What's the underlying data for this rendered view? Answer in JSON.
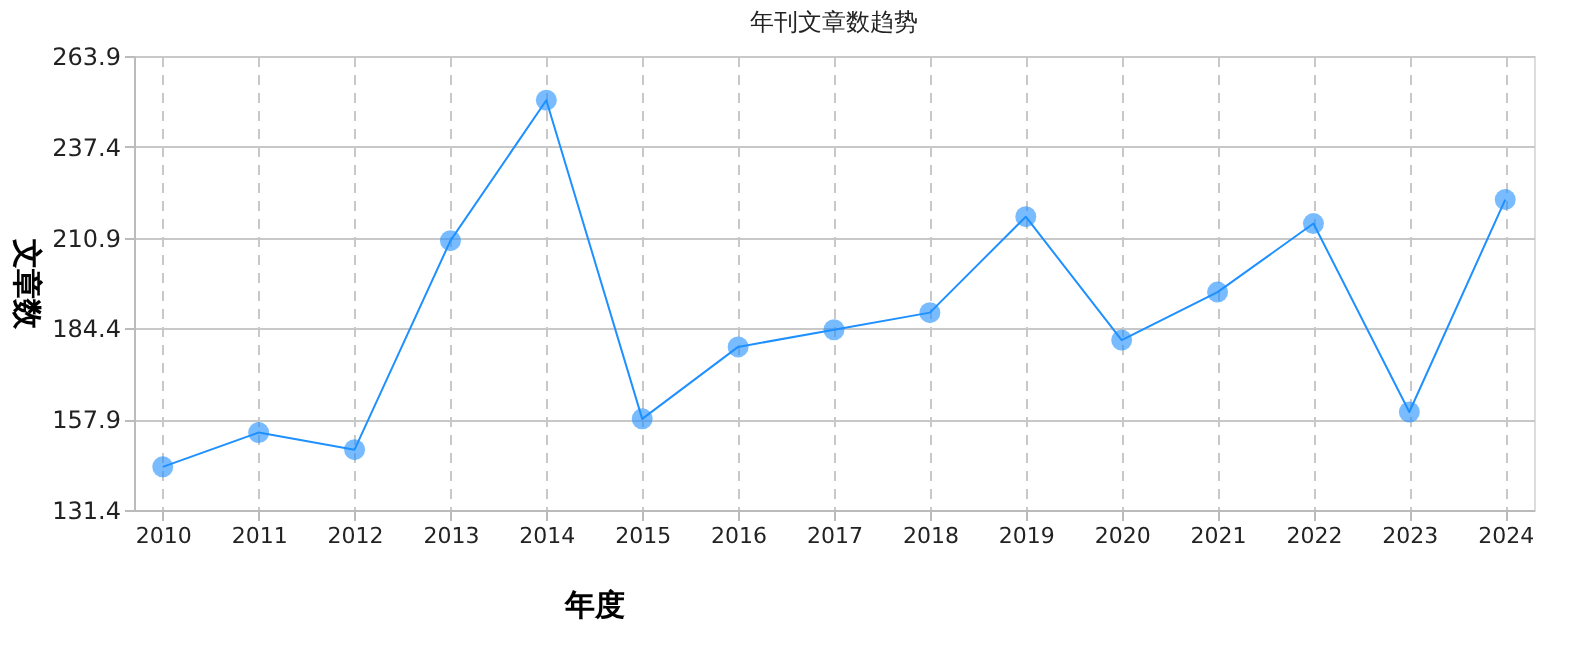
{
  "chart_data": {
    "type": "line",
    "title": "年刊文章数趋势",
    "xlabel": "年度",
    "ylabel": "文章数",
    "categories": [
      "2010",
      "2011",
      "2012",
      "2013",
      "2014",
      "2015",
      "2016",
      "2017",
      "2018",
      "2019",
      "2020",
      "2021",
      "2022",
      "2023",
      "2024"
    ],
    "series": [
      {
        "color": "#1e90ff",
        "values": [
          144,
          154,
          149,
          210,
          251,
          158,
          179,
          184,
          189,
          217,
          181,
          195,
          215,
          160,
          222
        ]
      }
    ],
    "ylim": [
      131.4,
      263.9
    ],
    "yticks": [
      131.4,
      157.9,
      184.4,
      210.9,
      237.4,
      263.9
    ],
    "grid": true,
    "marker": "circle",
    "line_style": "solid"
  }
}
